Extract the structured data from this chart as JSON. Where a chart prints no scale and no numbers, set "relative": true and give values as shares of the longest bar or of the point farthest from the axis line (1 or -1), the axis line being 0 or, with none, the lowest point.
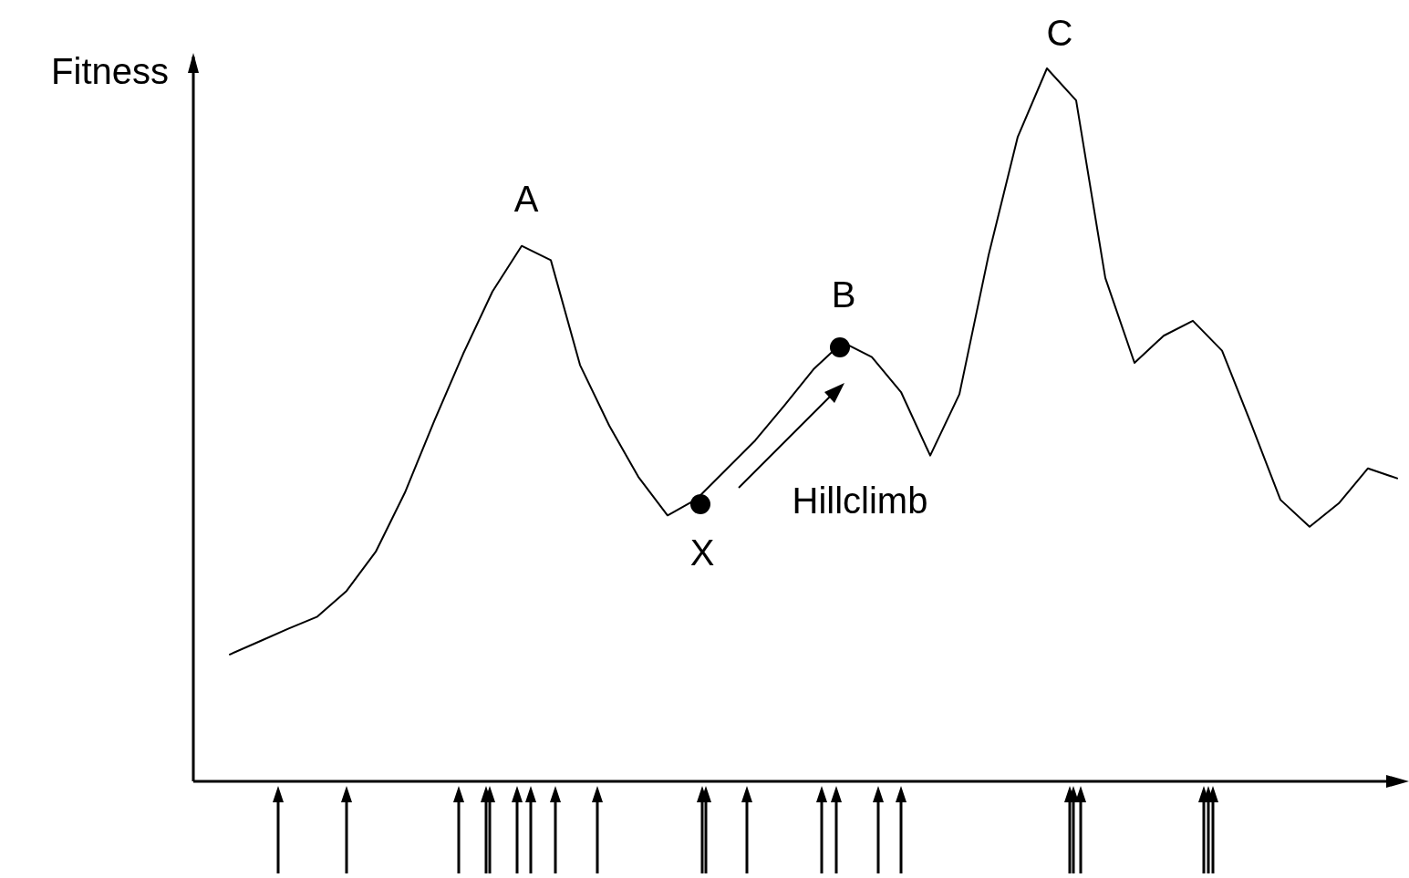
{
  "chart_data": {
    "type": "line",
    "relative": true,
    "ylabel": "Fitness",
    "categories": [
      null,
      null,
      null,
      null,
      null,
      null,
      null,
      null,
      null,
      null,
      null,
      null,
      null,
      null,
      null,
      null,
      null,
      null,
      null,
      null,
      null,
      null,
      null,
      null,
      null,
      null,
      null,
      null,
      null,
      null,
      null,
      null,
      null,
      null,
      null,
      null,
      null,
      null,
      null,
      null,
      null
    ],
    "series": [
      {
        "color": "#000000",
        "values": [
          0.178,
          0.196,
          0.214,
          0.231,
          0.267,
          0.322,
          0.405,
          0.505,
          0.6,
          0.687,
          0.751,
          0.731,
          0.584,
          0.499,
          0.427,
          0.373,
          0.396,
          0.437,
          0.478,
          0.527,
          0.578,
          0.616,
          0.595,
          0.546,
          0.457,
          0.543,
          0.738,
          0.904,
          1,
          0.955,
          0.706,
          0.587,
          0.625,
          0.646,
          0.604,
          0.501,
          0.395,
          0.357,
          0.39,
          0.439,
          0.425
        ]
      }
    ],
    "annotations": [
      "A",
      "B",
      "C",
      "X",
      "Hillclimb"
    ]
  }
}
